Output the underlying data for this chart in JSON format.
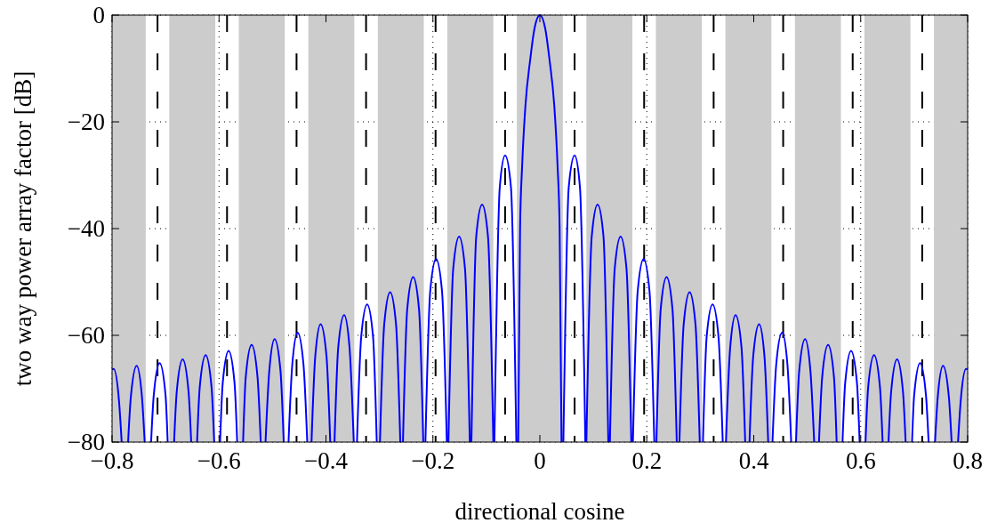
{
  "chart_data": {
    "type": "line",
    "xlabel": "directional cosine",
    "ylabel": "two way power array factor [dB]",
    "xlim": [
      -0.8,
      0.8
    ],
    "ylim": [
      -80,
      0
    ],
    "xticks": [
      {
        "value": -0.8,
        "label": "−0.8"
      },
      {
        "value": -0.6,
        "label": "−0.6"
      },
      {
        "value": -0.4,
        "label": "−0.4"
      },
      {
        "value": -0.2,
        "label": "−0.2"
      },
      0,
      0.2,
      0.4,
      0.6,
      0.8
    ],
    "yticks": [
      {
        "value": -80,
        "label": "−80"
      },
      {
        "value": -60,
        "label": "−60"
      },
      {
        "value": -40,
        "label": "−40"
      },
      {
        "value": -20,
        "label": "−20"
      },
      0
    ],
    "grid": true,
    "bands": [
      {
        "axis": "x",
        "from": -0.8,
        "to": -0.737,
        "color": "#cccccc"
      },
      {
        "axis": "x",
        "from": -0.693,
        "to": -0.607,
        "color": "#cccccc"
      },
      {
        "axis": "x",
        "from": -0.563,
        "to": -0.477,
        "color": "#cccccc"
      },
      {
        "axis": "x",
        "from": -0.433,
        "to": -0.347,
        "color": "#cccccc"
      },
      {
        "axis": "x",
        "from": -0.303,
        "to": -0.217,
        "color": "#cccccc"
      },
      {
        "axis": "x",
        "from": -0.173,
        "to": -0.087,
        "color": "#cccccc"
      },
      {
        "axis": "x",
        "from": -0.043,
        "to": 0.043,
        "color": "#cccccc"
      },
      {
        "axis": "x",
        "from": 0.087,
        "to": 0.173,
        "color": "#cccccc"
      },
      {
        "axis": "x",
        "from": 0.217,
        "to": 0.303,
        "color": "#cccccc"
      },
      {
        "axis": "x",
        "from": 0.347,
        "to": 0.433,
        "color": "#cccccc"
      },
      {
        "axis": "x",
        "from": 0.477,
        "to": 0.563,
        "color": "#cccccc"
      },
      {
        "axis": "x",
        "from": 0.607,
        "to": 0.693,
        "color": "#cccccc"
      },
      {
        "axis": "x",
        "from": 0.737,
        "to": 0.8,
        "color": "#cccccc"
      }
    ],
    "ref_lines": [
      {
        "axis": "x",
        "value": -0.715,
        "color": "#000000",
        "line_style": "dashed"
      },
      {
        "axis": "x",
        "value": -0.585,
        "color": "#000000",
        "line_style": "dashed"
      },
      {
        "axis": "x",
        "value": -0.455,
        "color": "#000000",
        "line_style": "dashed"
      },
      {
        "axis": "x",
        "value": -0.325,
        "color": "#000000",
        "line_style": "dashed"
      },
      {
        "axis": "x",
        "value": -0.195,
        "color": "#000000",
        "line_style": "dashed"
      },
      {
        "axis": "x",
        "value": -0.065,
        "color": "#000000",
        "line_style": "dashed"
      },
      {
        "axis": "x",
        "value": 0.065,
        "color": "#000000",
        "line_style": "dashed"
      },
      {
        "axis": "x",
        "value": 0.195,
        "color": "#000000",
        "line_style": "dashed"
      },
      {
        "axis": "x",
        "value": 0.325,
        "color": "#000000",
        "line_style": "dashed"
      },
      {
        "axis": "x",
        "value": 0.455,
        "color": "#000000",
        "line_style": "dashed"
      },
      {
        "axis": "x",
        "value": 0.585,
        "color": "#000000",
        "line_style": "dashed"
      },
      {
        "axis": "x",
        "value": 0.715,
        "color": "#000000",
        "line_style": "dashed"
      }
    ],
    "series": [
      {
        "color": "#0000ff",
        "x": [
          -0.8,
          -0.797,
          -0.787,
          -0.782,
          -0.776,
          -0.77,
          -0.765,
          -0.754,
          -0.744,
          -0.739,
          -0.733,
          -0.727,
          -0.722,
          -0.711,
          -0.7,
          -0.696,
          -0.69,
          -0.684,
          -0.679,
          -0.668,
          -0.657,
          -0.652,
          -0.647,
          -0.641,
          -0.636,
          -0.625,
          -0.614,
          -0.609,
          -0.603,
          -0.598,
          -0.593,
          -0.582,
          -0.571,
          -0.566,
          -0.56,
          -0.555,
          -0.55,
          -0.539,
          -0.528,
          -0.522,
          -0.517,
          -0.513,
          -0.506,
          -0.496,
          -0.485,
          -0.479,
          -0.474,
          -0.47,
          -0.463,
          -0.453,
          -0.442,
          -0.435,
          -0.431,
          -0.427,
          -0.42,
          -0.41,
          -0.399,
          -0.392,
          -0.388,
          -0.384,
          -0.377,
          -0.366,
          -0.356,
          -0.348,
          -0.345,
          -0.342,
          -0.334,
          -0.323,
          -0.312,
          -0.305,
          -0.302,
          -0.299,
          -0.291,
          -0.28,
          -0.269,
          -0.261,
          -0.259,
          -0.256,
          -0.248,
          -0.237,
          -0.226,
          -0.218,
          -0.216,
          -0.214,
          -0.205,
          -0.194,
          -0.183,
          -0.174,
          -0.172,
          -0.171,
          -0.162,
          -0.151,
          -0.14,
          -0.131,
          -0.129,
          -0.128,
          -0.119,
          -0.108,
          -0.097,
          -0.087,
          -0.086,
          -0.085,
          -0.075,
          -0.065,
          -0.054,
          -0.044,
          -0.043,
          -0.0405,
          -0.037,
          -0.033,
          -0.027,
          -0.018,
          -0.01,
          0,
          0.01,
          0.018,
          0.027,
          0.033,
          0.037,
          0.0405,
          0.043,
          0.044,
          0.054,
          0.065,
          0.075,
          0.085,
          0.086,
          0.087,
          0.097,
          0.108,
          0.119,
          0.128,
          0.129,
          0.131,
          0.14,
          0.151,
          0.162,
          0.171,
          0.172,
          0.174,
          0.183,
          0.194,
          0.205,
          0.214,
          0.216,
          0.218,
          0.226,
          0.237,
          0.248,
          0.256,
          0.259,
          0.261,
          0.269,
          0.28,
          0.291,
          0.299,
          0.302,
          0.305,
          0.312,
          0.323,
          0.334,
          0.342,
          0.345,
          0.348,
          0.356,
          0.366,
          0.377,
          0.384,
          0.388,
          0.392,
          0.399,
          0.41,
          0.42,
          0.427,
          0.431,
          0.435,
          0.442,
          0.453,
          0.463,
          0.47,
          0.474,
          0.479,
          0.485,
          0.496,
          0.506,
          0.513,
          0.517,
          0.522,
          0.528,
          0.539,
          0.55,
          0.555,
          0.56,
          0.566,
          0.571,
          0.582,
          0.593,
          0.598,
          0.603,
          0.609,
          0.614,
          0.625,
          0.636,
          0.641,
          0.647,
          0.652,
          0.657,
          0.668,
          0.679,
          0.684,
          0.69,
          0.696,
          0.7,
          0.711,
          0.722,
          0.727,
          0.733,
          0.739,
          0.744,
          0.754,
          0.765,
          0.77,
          0.776,
          0.782,
          0.787,
          0.797,
          0.8
        ],
        "values": [
          -66.4,
          -66.3,
          -72.3,
          -80,
          null,
          -80,
          -71.7,
          -65.7,
          -71.7,
          -80,
          null,
          -80,
          -71.2,
          -65.2,
          -71.2,
          -80,
          null,
          -80,
          -70.5,
          -64.5,
          -70.5,
          -80,
          null,
          -80,
          -69.7,
          -63.7,
          -69.7,
          -80,
          null,
          -80,
          -68.9,
          -62.9,
          -68.9,
          -80,
          null,
          -80,
          -67.8,
          -61.8,
          -67.8,
          -80,
          null,
          -80,
          -66.7,
          -60.7,
          -66.7,
          -80,
          null,
          -80,
          -65.5,
          -59.5,
          -65.5,
          -80,
          null,
          -80,
          -63.9,
          -57.9,
          -63.9,
          -80,
          null,
          -80,
          -62.2,
          -56.2,
          -62.2,
          -80,
          null,
          -80,
          -60.2,
          -54.2,
          -60.2,
          -80,
          null,
          -80,
          -57.9,
          -51.9,
          -57.9,
          -80,
          null,
          -80,
          -55.1,
          -49.1,
          -55.1,
          -80,
          null,
          -80,
          -51.7,
          -45.7,
          -51.7,
          -80,
          null,
          -80,
          -47.5,
          -41.5,
          -47.5,
          -80,
          null,
          -80,
          -41.5,
          -35.5,
          -41.5,
          -80,
          null,
          -80,
          -32.3,
          -26.3,
          -32.3,
          -80,
          null,
          -80,
          -40,
          -28,
          -17,
          -8.3,
          -2.5,
          0,
          -2.5,
          -8.3,
          -17,
          -28,
          -40,
          -80,
          null,
          -80,
          -32.3,
          -26.3,
          -32.3,
          -80,
          null,
          -80,
          -41.5,
          -35.5,
          -41.5,
          -80,
          null,
          -80,
          -47.5,
          -41.5,
          -47.5,
          -80,
          null,
          -80,
          -51.7,
          -45.7,
          -51.7,
          -80,
          null,
          -80,
          -55.1,
          -49.1,
          -55.1,
          -80,
          null,
          -80,
          -57.9,
          -51.9,
          -57.9,
          -80,
          null,
          -80,
          -60.2,
          -54.2,
          -60.2,
          -80,
          null,
          -80,
          -62.2,
          -56.2,
          -62.2,
          -80,
          null,
          -80,
          -63.9,
          -57.9,
          -63.9,
          -80,
          null,
          -80,
          -65.5,
          -59.5,
          -65.5,
          -80,
          null,
          -80,
          -66.7,
          -60.7,
          -66.7,
          -80,
          null,
          -80,
          -67.8,
          -61.8,
          -67.8,
          -80,
          null,
          -80,
          -68.9,
          -62.9,
          -68.9,
          -80,
          null,
          -80,
          -69.7,
          -63.7,
          -69.7,
          -80,
          null,
          -80,
          -70.5,
          -64.5,
          -70.5,
          -80,
          null,
          -80,
          -71.2,
          -65.2,
          -71.2,
          -80,
          null,
          -80,
          -71.7,
          -65.7,
          -71.7,
          -80,
          null,
          -80,
          -72.3,
          -66.3,
          -66.4
        ]
      }
    ]
  }
}
